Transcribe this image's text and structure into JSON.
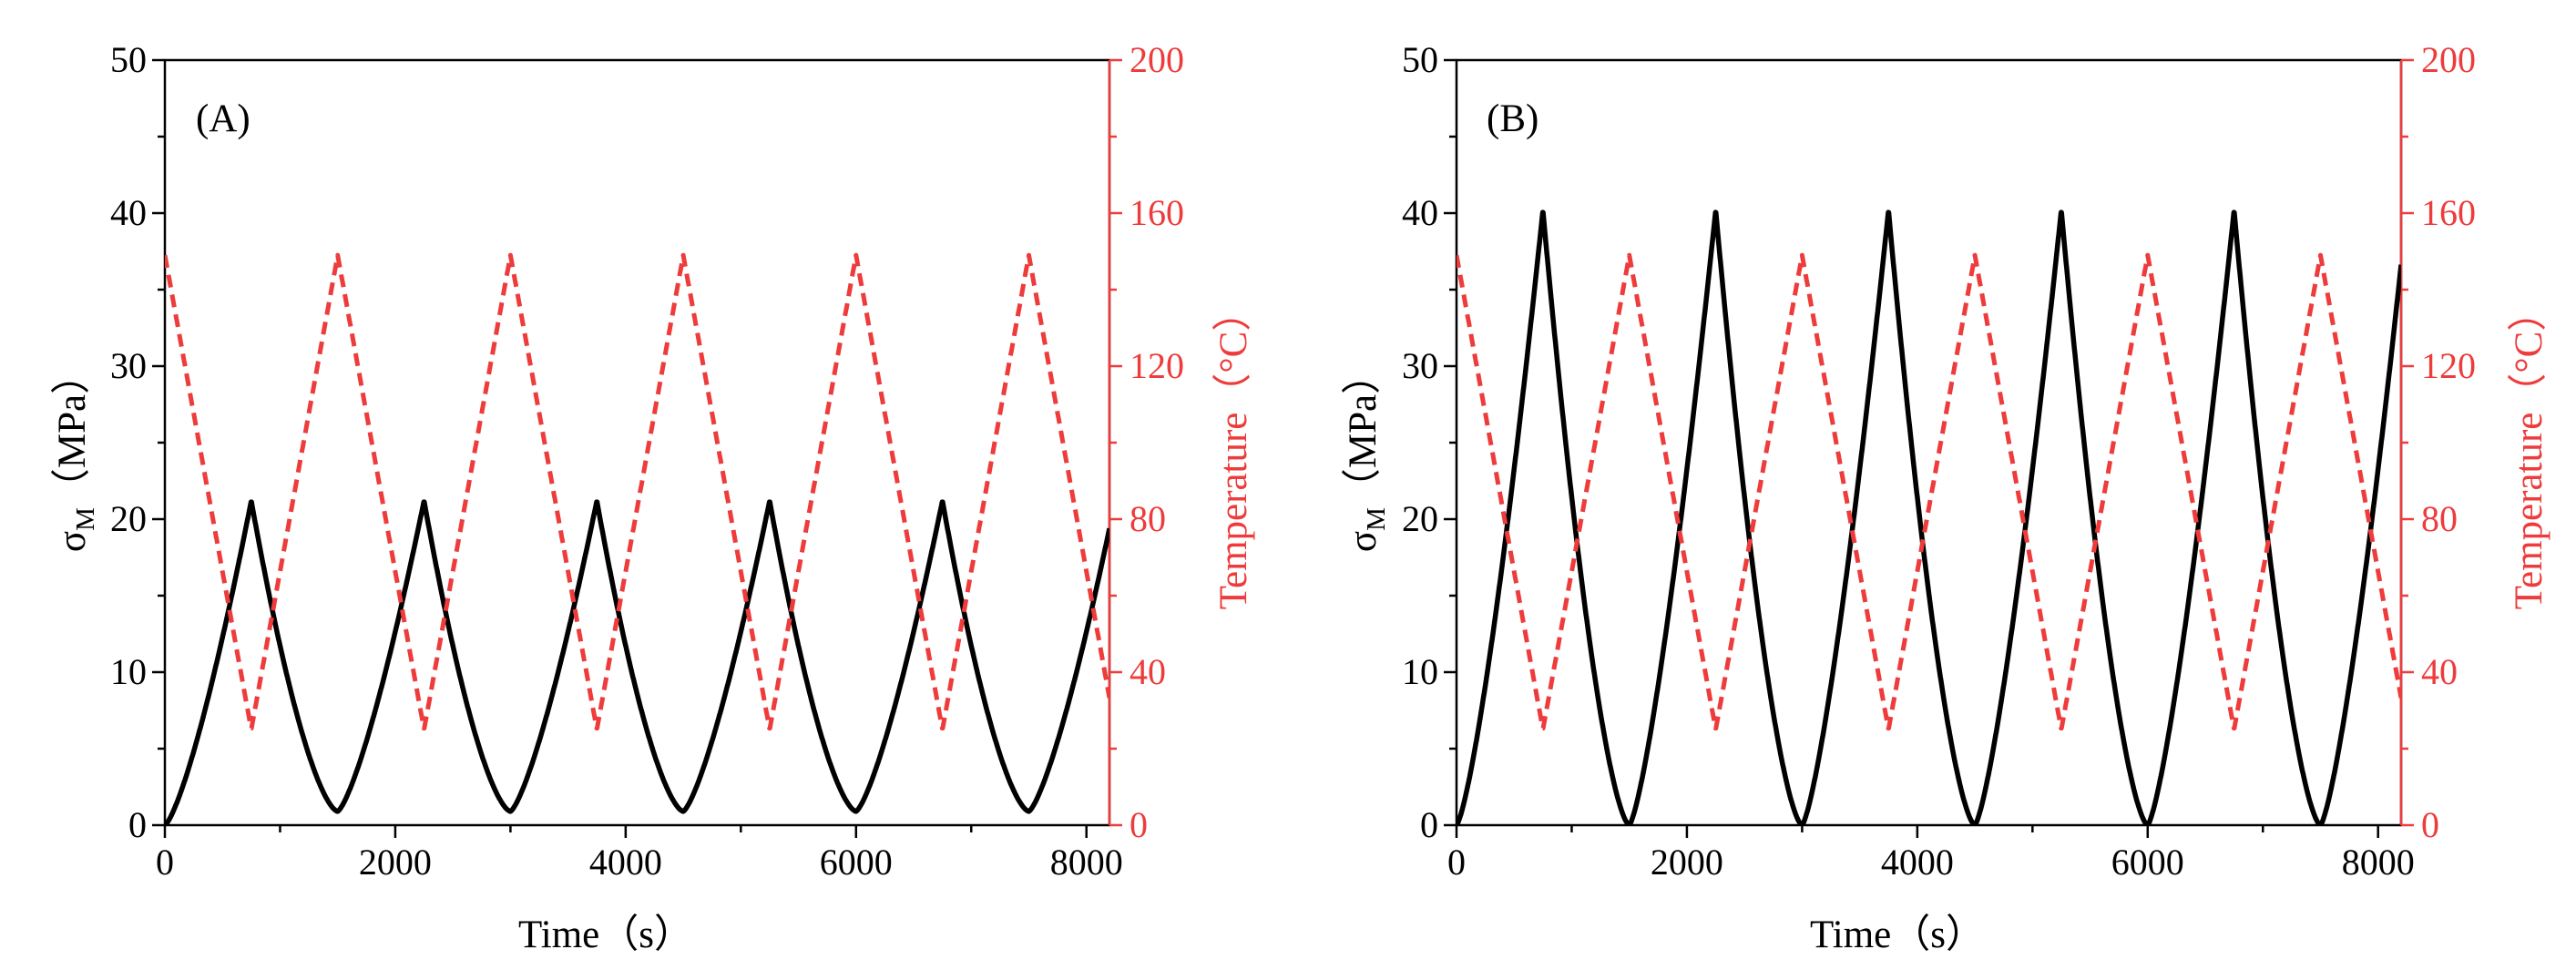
{
  "chart_data": [
    {
      "type": "line",
      "panel_label": "(A)",
      "xlabel": "Time（s）",
      "ylabel": {
        "main": "σ",
        "subscript": "M",
        "unit": "（MPa）"
      },
      "y2label": "Temperature（°C）",
      "xlim": [
        0,
        8200
      ],
      "ylim": [
        0,
        50
      ],
      "y2lim": [
        0,
        200
      ],
      "x_ticks": [
        0,
        2000,
        4000,
        6000,
        8000
      ],
      "x_tick_labels": [
        "0",
        "2000",
        "4000",
        "6000",
        "8000"
      ],
      "y_ticks": [
        0,
        10,
        20,
        30,
        40,
        50
      ],
      "y_tick_labels": [
        "0",
        "10",
        "20",
        "30",
        "40",
        "50"
      ],
      "y2_ticks": [
        0,
        40,
        80,
        120,
        160,
        200
      ],
      "y2_tick_labels": [
        "0",
        "40",
        "80",
        "120",
        "160",
        "200"
      ],
      "series": [
        {
          "name": "σM",
          "axis": "left",
          "color": "#000000",
          "style": "solid",
          "period": 1500,
          "peak_time": 750,
          "peak_value": 21.2,
          "min_value": 0.9,
          "start_value": 0
        },
        {
          "name": "Temperature",
          "axis": "right",
          "color": "#ee3b3b",
          "style": "dashed",
          "period": 1500,
          "max_value": 149,
          "min_value": 25,
          "phase": "max at 0 s, min at 750 s"
        }
      ]
    },
    {
      "type": "line",
      "panel_label": "(B)",
      "xlabel": "Time（s）",
      "ylabel": {
        "main": "σ",
        "subscript": "M",
        "unit": "（MPa）"
      },
      "y2label": "Temperature（°C）",
      "xlim": [
        0,
        8200
      ],
      "ylim": [
        0,
        50
      ],
      "y2lim": [
        0,
        200
      ],
      "x_ticks": [
        0,
        2000,
        4000,
        6000,
        8000
      ],
      "x_tick_labels": [
        "0",
        "2000",
        "4000",
        "6000",
        "8000"
      ],
      "y_ticks": [
        0,
        10,
        20,
        30,
        40,
        50
      ],
      "y_tick_labels": [
        "0",
        "10",
        "20",
        "30",
        "40",
        "50"
      ],
      "y2_ticks": [
        0,
        40,
        80,
        120,
        160,
        200
      ],
      "y2_tick_labels": [
        "0",
        "40",
        "80",
        "120",
        "160",
        "200"
      ],
      "series": [
        {
          "name": "σM",
          "axis": "left",
          "color": "#000000",
          "style": "solid",
          "period": 1500,
          "peak_time": 750,
          "peak_value": 40.2,
          "min_value": 0,
          "start_value": 0
        },
        {
          "name": "Temperature",
          "axis": "right",
          "color": "#ee3b3b",
          "style": "dashed",
          "period": 1500,
          "max_value": 149,
          "min_value": 25,
          "phase": "max at 0 s, min at 750 s"
        }
      ]
    }
  ]
}
